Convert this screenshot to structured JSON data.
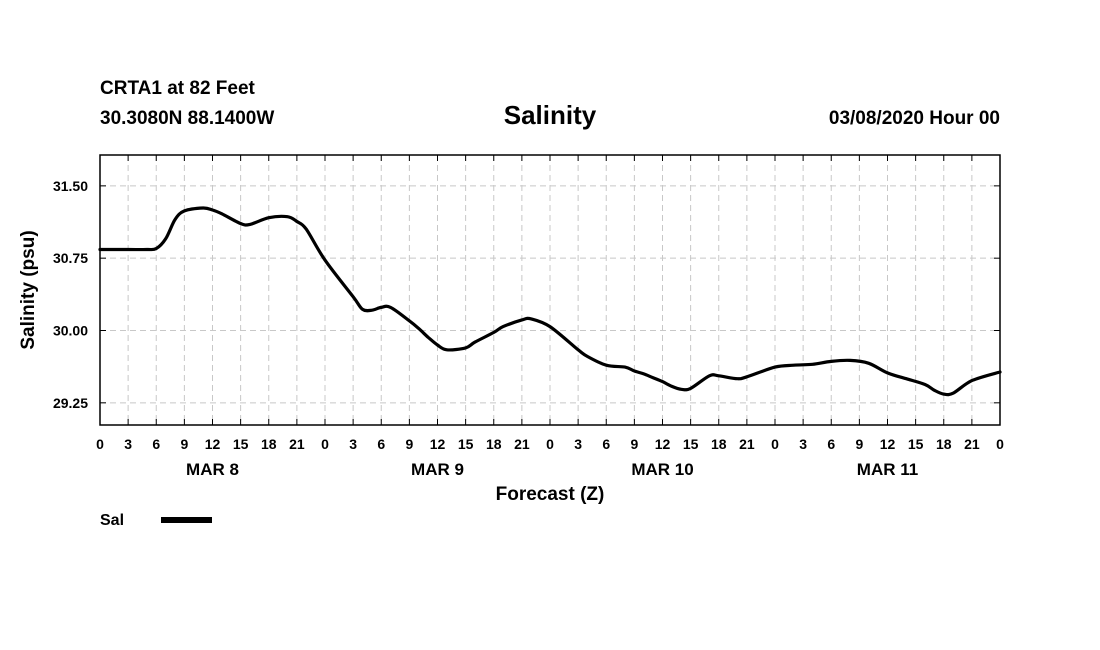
{
  "header": {
    "station": "CRTA1 at 82 Feet",
    "coordinates": "30.3080N 88.1400W",
    "title": "Salinity",
    "datetime": "03/08/2020 Hour 00"
  },
  "chart_data": {
    "type": "line",
    "title": "Salinity",
    "xlabel": "Forecast (Z)",
    "ylabel": "Salinity (psu)",
    "xlim": [
      0,
      96
    ],
    "ylim": [
      29.02,
      31.82
    ],
    "grid": true,
    "x_tick_values": [
      0,
      3,
      6,
      9,
      12,
      15,
      18,
      21,
      24,
      27,
      30,
      33,
      36,
      39,
      42,
      45,
      48,
      51,
      54,
      57,
      60,
      63,
      66,
      69,
      72,
      75,
      78,
      81,
      84,
      87,
      90,
      93,
      96
    ],
    "x_tick_labels": [
      "0",
      "3",
      "6",
      "9",
      "12",
      "15",
      "18",
      "21",
      "0",
      "3",
      "6",
      "9",
      "12",
      "15",
      "18",
      "21",
      "0",
      "3",
      "6",
      "9",
      "12",
      "15",
      "18",
      "21",
      "0",
      "3",
      "6",
      "9",
      "12",
      "15",
      "18",
      "21",
      "0"
    ],
    "y_ticks": [
      29.25,
      30.0,
      30.75,
      31.5
    ],
    "y_tick_labels": [
      "29.25",
      "30.00",
      "30.75",
      "31.50"
    ],
    "day_labels": [
      {
        "x": 12,
        "label": "MAR 8"
      },
      {
        "x": 36,
        "label": "MAR 9"
      },
      {
        "x": 60,
        "label": "MAR 10"
      },
      {
        "x": 84,
        "label": "MAR 11"
      }
    ],
    "series": [
      {
        "name": "Sal",
        "color": "#000000",
        "x": [
          0,
          3,
          5,
          6,
          7,
          8,
          9,
          11,
          12,
          13,
          15,
          16,
          18,
          20,
          21,
          22,
          24,
          27,
          28,
          29,
          30,
          31,
          33,
          34,
          35,
          36,
          37,
          39,
          40,
          42,
          43,
          45,
          46,
          48,
          51,
          52,
          54,
          56,
          57,
          58,
          59,
          60,
          61,
          62,
          63,
          65,
          66,
          68,
          69,
          72,
          74,
          76,
          78,
          80,
          82,
          84,
          86,
          88,
          89,
          90,
          91,
          93,
          96
        ],
        "values": [
          30.84,
          30.84,
          30.84,
          30.85,
          30.95,
          31.15,
          31.24,
          31.27,
          31.25,
          31.21,
          31.11,
          31.1,
          31.17,
          31.18,
          31.13,
          31.05,
          30.73,
          30.35,
          30.22,
          30.21,
          30.24,
          30.24,
          30.1,
          30.02,
          29.93,
          29.85,
          29.8,
          29.82,
          29.88,
          29.98,
          30.04,
          30.11,
          30.12,
          30.04,
          29.8,
          29.73,
          29.64,
          29.62,
          29.58,
          29.55,
          29.51,
          29.47,
          29.42,
          29.39,
          29.4,
          29.53,
          29.53,
          29.5,
          29.52,
          29.62,
          29.64,
          29.65,
          29.68,
          29.69,
          29.66,
          29.56,
          29.5,
          29.44,
          29.38,
          29.34,
          29.35,
          29.48,
          29.57
        ]
      }
    ]
  },
  "legend": {
    "items": [
      {
        "label": "Sal",
        "color": "#000000"
      }
    ]
  }
}
